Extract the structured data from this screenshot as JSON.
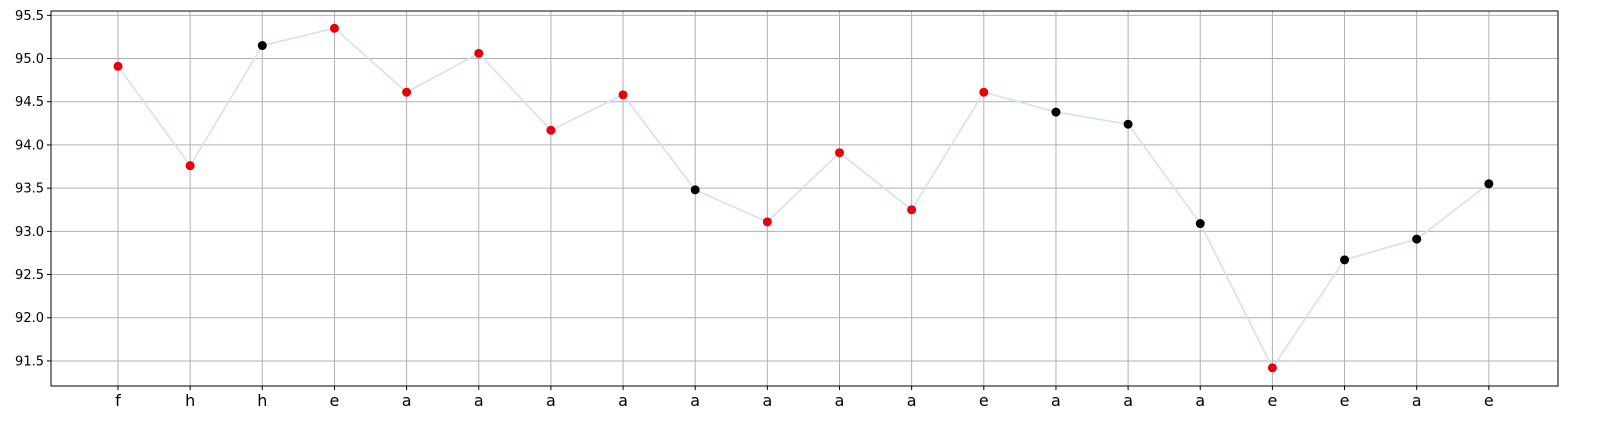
{
  "chart_data": {
    "type": "scatter",
    "categories": [
      "f",
      "h",
      "h",
      "e",
      "a",
      "a",
      "a",
      "a",
      "a",
      "a",
      "a",
      "a",
      "e",
      "a",
      "a",
      "a",
      "e",
      "e",
      "a",
      "e"
    ],
    "values": [
      94.91,
      93.76,
      95.15,
      95.35,
      94.61,
      95.06,
      94.17,
      94.58,
      93.48,
      93.11,
      93.91,
      93.25,
      94.61,
      94.38,
      94.24,
      93.09,
      91.42,
      92.67,
      92.91,
      93.55
    ],
    "point_colors": [
      "#e8000b",
      "#e8000b",
      "#000000",
      "#e8000b",
      "#e8000b",
      "#e8000b",
      "#e8000b",
      "#e8000b",
      "#000000",
      "#e8000b",
      "#e8000b",
      "#e8000b",
      "#e8000b",
      "#000000",
      "#000000",
      "#000000",
      "#e8000b",
      "#000000",
      "#000000",
      "#000000"
    ],
    "connecting_line": true,
    "line_color": "#cfe3f2",
    "ylim": [
      91.21,
      95.55
    ],
    "yticks": [
      91.5,
      92.0,
      92.5,
      93.0,
      93.5,
      94.0,
      94.5,
      95.0,
      95.5
    ],
    "ytick_labels": [
      "91.5",
      "92.0",
      "92.5",
      "93.0",
      "93.5",
      "94.0",
      "94.5",
      "95.0",
      "95.5"
    ],
    "grid": true,
    "title": "",
    "xlabel": "",
    "ylabel": ""
  }
}
